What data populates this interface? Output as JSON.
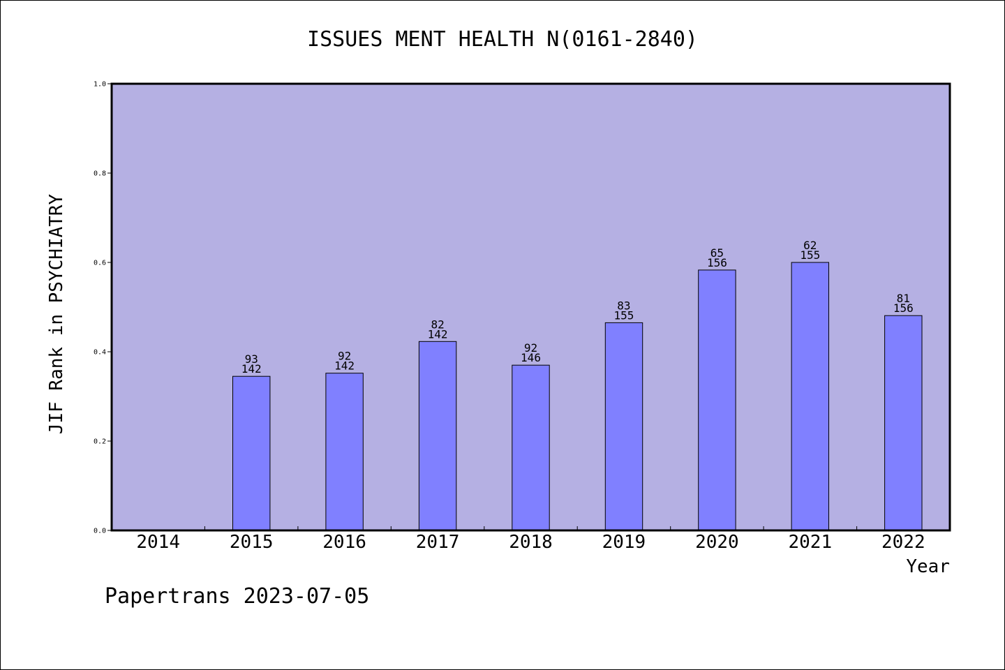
{
  "chart_data": {
    "type": "bar",
    "title": "ISSUES MENT HEALTH N(0161-2840)",
    "xlabel": "Year",
    "ylabel": "JIF Rank in PSYCHIATRY",
    "ylim": [
      0,
      1.0
    ],
    "yticks": [
      "0.0",
      "0.2",
      "0.4",
      "0.6",
      "0.8",
      "1.0"
    ],
    "categories": [
      "2014",
      "2015",
      "2016",
      "2017",
      "2018",
      "2019",
      "2020",
      "2021",
      "2022"
    ],
    "values": [
      null,
      0.345,
      0.352,
      0.423,
      0.37,
      0.465,
      0.583,
      0.6,
      0.481
    ],
    "rank_labels": [
      "",
      "93",
      "92",
      "82",
      "92",
      "83",
      "65",
      "62",
      "81"
    ],
    "total_labels": [
      "",
      "142",
      "142",
      "142",
      "146",
      "155",
      "156",
      "155",
      "156"
    ],
    "grid": false,
    "colors": {
      "plot_background": "#b5b0e3",
      "bar_fill": "#8080ff",
      "bar_stroke": "#000000",
      "axis": "#000000"
    }
  },
  "footer": {
    "text": "Papertrans 2023-07-05"
  }
}
